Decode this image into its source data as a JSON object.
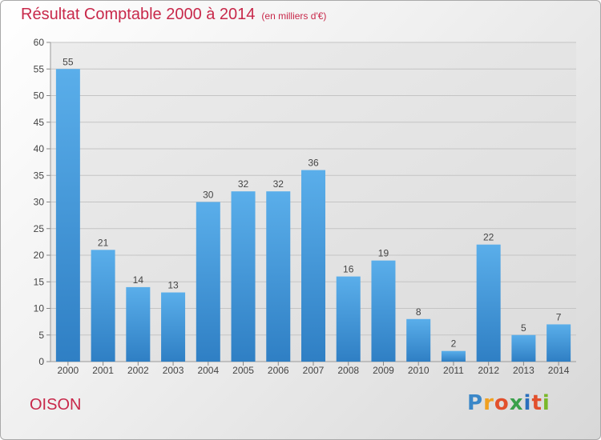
{
  "chart_data": {
    "type": "bar",
    "title": "Résultat Comptable 2000 à 2014",
    "subtitle": "(en milliers d'€)",
    "categories": [
      "2000",
      "2001",
      "2002",
      "2003",
      "2004",
      "2005",
      "2006",
      "2007",
      "2008",
      "2009",
      "2010",
      "2011",
      "2012",
      "2013",
      "2014"
    ],
    "values": [
      55,
      21,
      14,
      13,
      30,
      32,
      32,
      36,
      16,
      19,
      8,
      2,
      22,
      5,
      7
    ],
    "ylim": [
      0,
      60
    ],
    "yticks": [
      0,
      5,
      10,
      15,
      20,
      25,
      30,
      35,
      40,
      45,
      50,
      55,
      60
    ],
    "xlabel": "",
    "ylabel": "",
    "grid": true,
    "bar_color": "#3d8fd6"
  },
  "footer": {
    "commune": "OISON",
    "logo_letters": [
      "P",
      "r",
      "o",
      "x",
      "i",
      "t",
      "i"
    ]
  }
}
